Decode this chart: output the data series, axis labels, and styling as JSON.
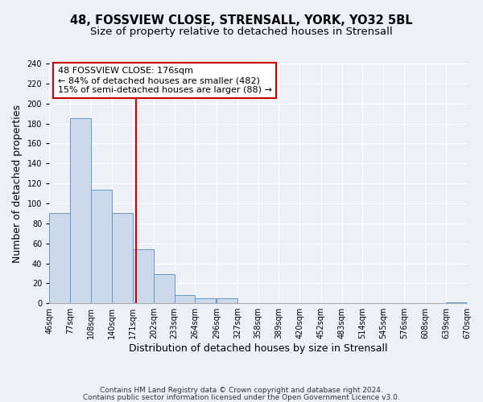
{
  "title": "48, FOSSVIEW CLOSE, STRENSALL, YORK, YO32 5BL",
  "subtitle": "Size of property relative to detached houses in Strensall",
  "xlabel": "Distribution of detached houses by size in Strensall",
  "ylabel": "Number of detached properties",
  "bar_left_edges": [
    46,
    77,
    108,
    140,
    171,
    202,
    233,
    264,
    296,
    327,
    358,
    389,
    420,
    452,
    483,
    514,
    545,
    576,
    608,
    639
  ],
  "bar_heights": [
    90,
    185,
    114,
    90,
    54,
    29,
    8,
    5,
    5,
    0,
    0,
    0,
    0,
    0,
    0,
    0,
    0,
    0,
    0,
    1
  ],
  "bin_width": 31,
  "bar_color": "#ccd9ea",
  "bar_edge_color": "#6699cc",
  "vline_x": 176,
  "vline_color": "#cc0000",
  "ylim": [
    0,
    240
  ],
  "yticks": [
    0,
    20,
    40,
    60,
    80,
    100,
    120,
    140,
    160,
    180,
    200,
    220,
    240
  ],
  "xtick_labels": [
    "46sqm",
    "77sqm",
    "108sqm",
    "140sqm",
    "171sqm",
    "202sqm",
    "233sqm",
    "264sqm",
    "296sqm",
    "327sqm",
    "358sqm",
    "389sqm",
    "420sqm",
    "452sqm",
    "483sqm",
    "514sqm",
    "545sqm",
    "576sqm",
    "608sqm",
    "639sqm",
    "670sqm"
  ],
  "annotation_title": "48 FOSSVIEW CLOSE: 176sqm",
  "annotation_line1": "← 84% of detached houses are smaller (482)",
  "annotation_line2": "15% of semi-detached houses are larger (88) →",
  "footer1": "Contains HM Land Registry data © Crown copyright and database right 2024.",
  "footer2": "Contains public sector information licensed under the Open Government Licence v3.0.",
  "background_color": "#edf1f7",
  "grid_color": "#ffffff",
  "title_fontsize": 10.5,
  "subtitle_fontsize": 9.5,
  "axis_label_fontsize": 9,
  "tick_fontsize": 7,
  "annotation_fontsize": 8,
  "footer_fontsize": 6.5
}
